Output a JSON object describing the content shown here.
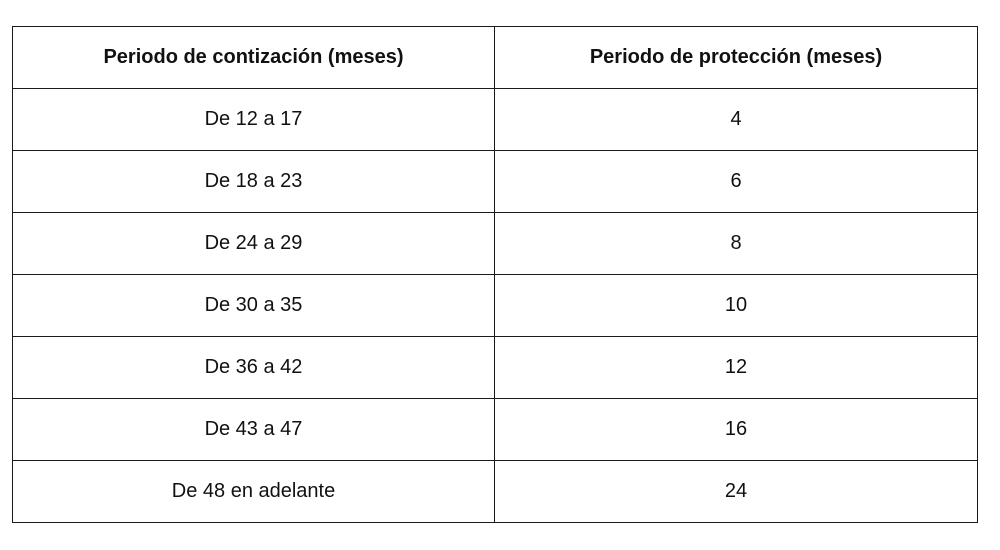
{
  "table": {
    "headers": [
      "Periodo de contización (meses)",
      "Periodo de protección (meses)"
    ],
    "rows": [
      [
        "De 12 a 17",
        "4"
      ],
      [
        "De 18 a 23",
        "6"
      ],
      [
        "De 24 a 29",
        "8"
      ],
      [
        "De 30 a 35",
        "10"
      ],
      [
        "De 36 a 42",
        "12"
      ],
      [
        "De 43 a 47",
        "16"
      ],
      [
        "De 48 en adelante",
        "24"
      ]
    ]
  }
}
